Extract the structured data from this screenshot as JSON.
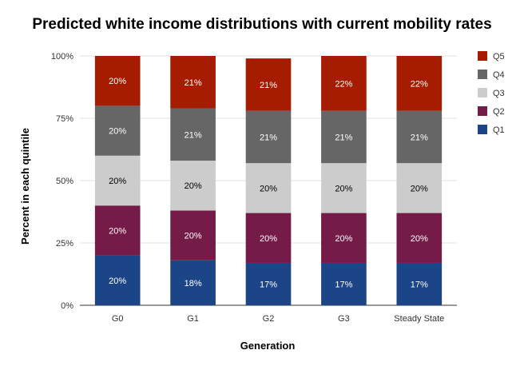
{
  "chart_data": {
    "type": "bar",
    "stacked": true,
    "title": "Predicted white income distributions with current mobility rates",
    "xlabel": "Generation",
    "ylabel": "Percent in each quintile",
    "categories": [
      "G0",
      "G1",
      "G2",
      "G3",
      "Steady State"
    ],
    "y_ticks": [
      "0%",
      "25%",
      "50%",
      "75%",
      "100%"
    ],
    "ylim": [
      0,
      100
    ],
    "legend_position": "right",
    "series": [
      {
        "name": "Q1",
        "color": "#1c4587",
        "label_color": "#ffffff",
        "values": [
          20,
          18,
          17,
          17,
          17
        ],
        "labels": [
          "20%",
          "18%",
          "17%",
          "17%",
          "17%"
        ]
      },
      {
        "name": "Q2",
        "color": "#741b47",
        "label_color": "#ffffff",
        "values": [
          20,
          20,
          20,
          20,
          20
        ],
        "labels": [
          "20%",
          "20%",
          "20%",
          "20%",
          "20%"
        ]
      },
      {
        "name": "Q3",
        "color": "#cccccc",
        "label_color": "#000000",
        "values": [
          20,
          20,
          20,
          20,
          20
        ],
        "labels": [
          "20%",
          "20%",
          "20%",
          "20%",
          "20%"
        ]
      },
      {
        "name": "Q4",
        "color": "#666666",
        "label_color": "#ffffff",
        "values": [
          20,
          21,
          21,
          21,
          21
        ],
        "labels": [
          "20%",
          "21%",
          "21%",
          "21%",
          "21%"
        ]
      },
      {
        "name": "Q5",
        "color": "#a61c00",
        "label_color": "#ffffff",
        "values": [
          20,
          21,
          21,
          22,
          22
        ],
        "labels": [
          "20%",
          "21%",
          "21%",
          "22%",
          "22%"
        ]
      }
    ]
  }
}
